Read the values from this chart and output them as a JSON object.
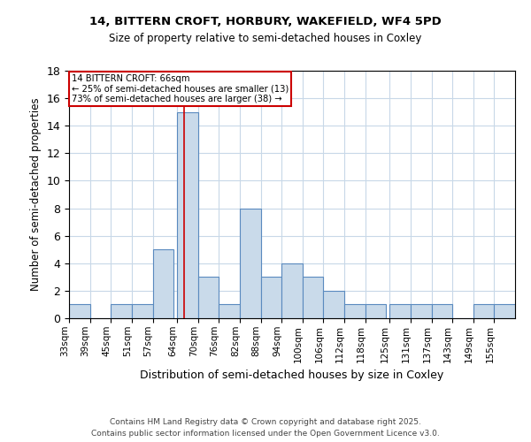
{
  "title1": "14, BITTERN CROFT, HORBURY, WAKEFIELD, WF4 5PD",
  "title2": "Size of property relative to semi-detached houses in Coxley",
  "xlabel": "Distribution of semi-detached houses by size in Coxley",
  "ylabel": "Number of semi-detached properties",
  "bins": [
    33,
    39,
    45,
    51,
    57,
    64,
    70,
    76,
    82,
    88,
    94,
    100,
    106,
    112,
    118,
    125,
    131,
    137,
    143,
    149,
    155
  ],
  "bin_labels": [
    "33sqm",
    "39sqm",
    "45sqm",
    "51sqm",
    "57sqm",
    "64sqm",
    "70sqm",
    "76sqm",
    "82sqm",
    "88sqm",
    "94sqm",
    "100sqm",
    "106sqm",
    "112sqm",
    "118sqm",
    "125sqm",
    "131sqm",
    "137sqm",
    "143sqm",
    "149sqm",
    "155sqm"
  ],
  "values": [
    1,
    0,
    1,
    1,
    5,
    15,
    3,
    1,
    8,
    3,
    4,
    3,
    2,
    1,
    1,
    1,
    1,
    1,
    0,
    1,
    1
  ],
  "bar_color": "#c9daea",
  "bar_edge_color": "#5a8abf",
  "property_line_x": 66,
  "property_line_color": "#cc0000",
  "annotation_line1": "14 BITTERN CROFT: 66sqm",
  "annotation_line2": "← 25% of semi-detached houses are smaller (13)",
  "annotation_line3": "73% of semi-detached houses are larger (38) →",
  "annotation_box_color": "#cc0000",
  "annotation_text_color": "#000000",
  "footnote1": "Contains HM Land Registry data © Crown copyright and database right 2025.",
  "footnote2": "Contains public sector information licensed under the Open Government Licence v3.0.",
  "ylim": [
    0,
    18
  ],
  "yticks": [
    0,
    2,
    4,
    6,
    8,
    10,
    12,
    14,
    16,
    18
  ],
  "background_color": "#ffffff",
  "grid_color": "#c8d8e8",
  "bin_width": 6
}
